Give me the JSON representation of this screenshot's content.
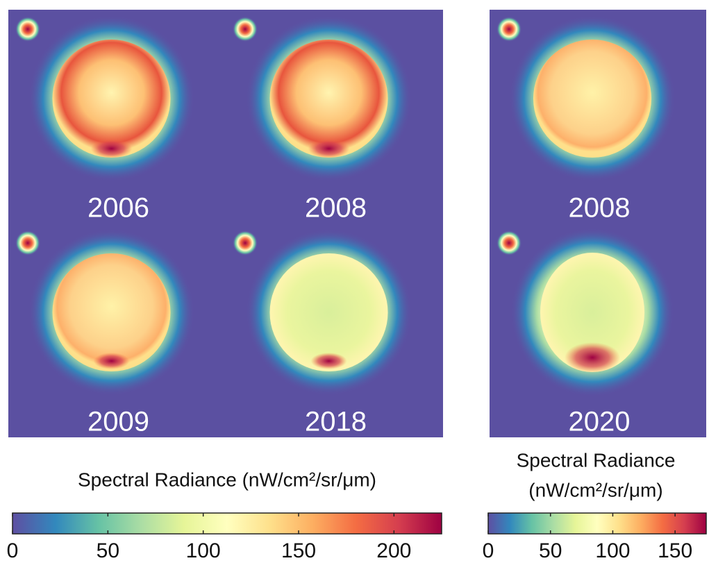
{
  "panels": [
    {
      "label": "2006"
    },
    {
      "label": "2008"
    },
    {
      "label": "2009"
    },
    {
      "label": "2018"
    },
    {
      "label": "2008"
    },
    {
      "label": "2020"
    }
  ],
  "colorbars": [
    {
      "title": [
        "Spectral Radiance (nW/cm²/sr/μm)"
      ],
      "lim": [
        0,
        225
      ],
      "ticks": [
        0,
        50,
        100,
        150,
        200
      ]
    },
    {
      "title": [
        "Spectral Radiance",
        "(nW/cm²/sr/μm)"
      ],
      "lim": [
        0,
        175
      ],
      "ticks": [
        0,
        50,
        100,
        150
      ]
    }
  ]
}
